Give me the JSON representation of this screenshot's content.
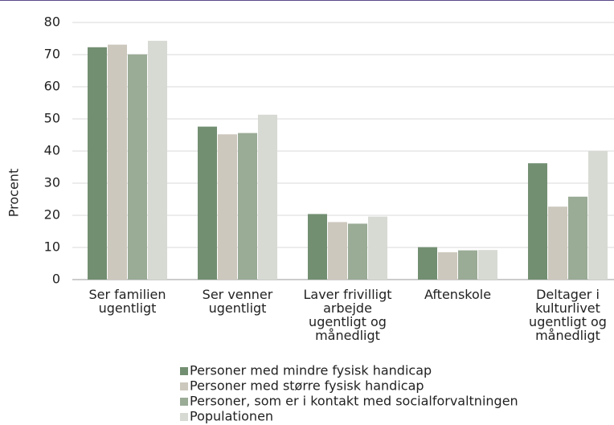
{
  "chart_data": {
    "type": "bar",
    "categories": [
      "Ser familien ugentligt",
      "Ser venner ugentligt",
      "Laver frivilligt arbejde ugentligt og månedligt",
      "Aftenskole",
      "Deltager i kulturlivet ugentligt og månedligt"
    ],
    "series": [
      {
        "name": "Personer med mindre fysisk handicap",
        "color": "#738f72",
        "values": [
          72.3,
          47.6,
          20.4,
          10.1,
          36.2
        ]
      },
      {
        "name": "Personer med større fysisk handicap",
        "color": "#cdc8bd",
        "values": [
          73.1,
          45.2,
          17.9,
          8.5,
          22.7
        ]
      },
      {
        "name": "Personer, som er i kontakt med socialforvaltningen",
        "color": "#9aab96",
        "values": [
          70.1,
          45.6,
          17.4,
          9.1,
          25.8
        ]
      },
      {
        "name": "Populationen",
        "color": "#d6dad3",
        "values": [
          74.3,
          51.3,
          19.6,
          9.2,
          40.0
        ]
      }
    ],
    "ylabel": "Procent",
    "ylim": [
      0,
      80
    ],
    "yticks": [
      0,
      10,
      20,
      30,
      40,
      50,
      60,
      70,
      80
    ],
    "grid": true,
    "legend": "bottom"
  }
}
